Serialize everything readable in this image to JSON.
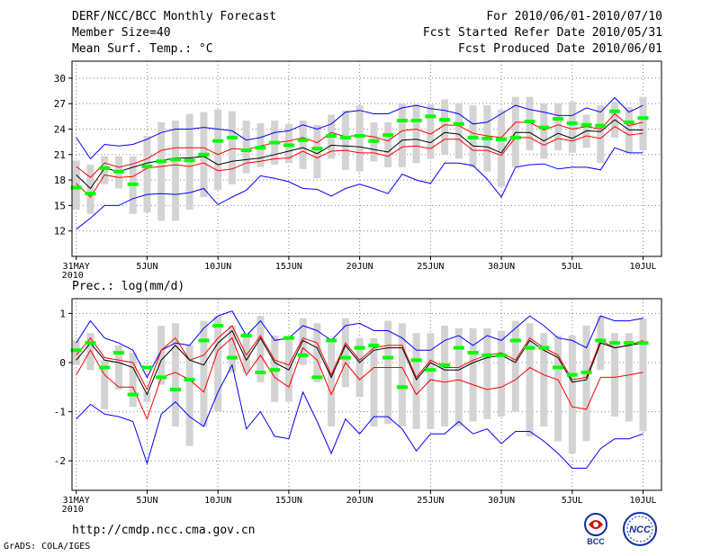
{
  "header": {
    "title": "DERF/NCC/BCC Monthly Forecast",
    "member_size": "Member Size=40",
    "variable": "Mean Surf. Temp.: °C",
    "period": "For 2010/06/01-2010/07/10",
    "started": "Fcst Started Refer Date 2010/05/31",
    "produced": "Fcst Produced Date 2010/06/01"
  },
  "footer": {
    "url": "http://cmdp.ncc.cma.gov.cn",
    "grads": "GrADS: COLA/IGES",
    "logo_left_text": "BCC",
    "logo_right_text": "NCC"
  },
  "colors": {
    "envelope": "#0000ff",
    "spread": "#ff0000",
    "mean": "#000000",
    "obs": "#00ff00",
    "box": "#d3d3d3",
    "grid": "#808080"
  },
  "chart_data": [
    {
      "type": "line",
      "title": "Mean Surf. Temp.: °C",
      "x_tick_labels": [
        "31MAY",
        "5JUN",
        "10JUN",
        "15JUN",
        "20JUN",
        "25JUN",
        "30JUN",
        "5JUL",
        "10JUL"
      ],
      "x_year_label": "2010",
      "y_ticks": [
        12,
        15,
        18,
        21,
        24,
        27,
        30
      ],
      "ylim": [
        9,
        32
      ],
      "series": [
        {
          "name": "max",
          "values": [
            23,
            20.5,
            22.2,
            22.0,
            22.2,
            22.8,
            23.6,
            24.0,
            24.0,
            24.2,
            24.0,
            23.8,
            22.7,
            23.0,
            23.6,
            23.8,
            24.5,
            24.0,
            24.6,
            26.0,
            26.2,
            25.8,
            25.8,
            26.5,
            26.8,
            26.4,
            26.2,
            25.8,
            24.6,
            24.8,
            25.8,
            26.8,
            26.3,
            26.0,
            25.6,
            25.6,
            26.5,
            26.0,
            27.7,
            26.0,
            26.8
          ]
        },
        {
          "name": "upper",
          "values": [
            19.6,
            18.3,
            20.0,
            19.5,
            19.9,
            20.5,
            21.5,
            21.8,
            21.8,
            21.8,
            21.0,
            21.7,
            21.6,
            22.0,
            22.4,
            22.6,
            23.0,
            22.4,
            23.6,
            23.1,
            23.3,
            23.1,
            22.6,
            23.8,
            24.0,
            23.4,
            24.5,
            24.4,
            23.5,
            23.2,
            23.0,
            24.8,
            24.8,
            23.9,
            24.5,
            24.0,
            24.3,
            24.0,
            25.8,
            24.4,
            24.8
          ]
        },
        {
          "name": "mean",
          "values": [
            18.6,
            17.0,
            19.4,
            19.0,
            19.5,
            20.0,
            20.3,
            20.6,
            20.6,
            20.8,
            19.8,
            20.2,
            20.4,
            20.6,
            21.0,
            21.4,
            21.8,
            21.1,
            22.1,
            22.0,
            21.9,
            21.6,
            21.3,
            22.7,
            22.8,
            22.4,
            23.6,
            23.4,
            22.0,
            21.9,
            21.2,
            23.6,
            23.6,
            22.6,
            23.5,
            22.9,
            23.8,
            23.7,
            25.1,
            23.9,
            23.9
          ]
        },
        {
          "name": "lower",
          "values": [
            17.6,
            16.0,
            18.6,
            18.3,
            18.4,
            19.4,
            19.6,
            19.8,
            19.6,
            20.0,
            19.1,
            19.3,
            20.0,
            20.2,
            20.5,
            20.6,
            21.4,
            20.6,
            21.4,
            21.5,
            21.2,
            21.2,
            20.8,
            21.9,
            22.0,
            21.7,
            22.8,
            22.8,
            21.5,
            21.5,
            20.9,
            23.0,
            23.0,
            22.1,
            22.9,
            22.6,
            23.2,
            22.9,
            24.3,
            23.3,
            23.5
          ]
        },
        {
          "name": "min",
          "values": [
            12.2,
            13.5,
            15.0,
            15.0,
            15.8,
            16.3,
            16.4,
            16.3,
            16.5,
            17.0,
            15.1,
            16.0,
            16.8,
            18.5,
            18.2,
            17.8,
            17.0,
            16.9,
            16.1,
            17.0,
            17.5,
            17.0,
            16.4,
            18.7,
            18.0,
            17.6,
            20.0,
            20.0,
            19.7,
            18.1,
            16.0,
            19.5,
            19.8,
            19.9,
            19.3,
            19.5,
            19.5,
            19.2,
            21.8,
            21.2,
            21.2
          ]
        },
        {
          "name": "observed",
          "values": [
            17.1,
            16.4,
            19.4,
            19.0,
            17.5,
            19.6,
            20.2,
            20.4,
            20.3,
            21.0,
            22.6,
            23.0,
            21.5,
            21.8,
            22.4,
            22.1,
            22.7,
            21.7,
            23.2,
            23.0,
            23.2,
            22.6,
            23.3,
            25.0,
            25.0,
            25.5,
            25.1,
            24.6,
            23.0,
            22.9,
            22.8,
            23.0,
            24.9,
            24.2,
            25.2,
            24.7,
            24.5,
            24.4,
            26.1,
            24.8,
            25.3
          ]
        },
        {
          "name": "box_high",
          "values": [
            20.3,
            19.8,
            20.8,
            20.8,
            20.8,
            23.2,
            24.8,
            25.0,
            25.8,
            26.0,
            26.3,
            26.1,
            25.0,
            24.7,
            25.0,
            24.6,
            25.0,
            24.5,
            25.7,
            26.2,
            26.8,
            24.8,
            24.8,
            27.0,
            26.9,
            26.9,
            27.5,
            27.0,
            26.8,
            26.8,
            26.3,
            27.8,
            27.8,
            27.0,
            27.0,
            27.2,
            25.7,
            26.8,
            27.2,
            26.6,
            27.8
          ]
        },
        {
          "name": "box_low",
          "values": [
            14.5,
            14.0,
            17.5,
            17.0,
            14.0,
            14.2,
            13.2,
            13.2,
            14.5,
            16.0,
            16.8,
            17.5,
            18.8,
            19.5,
            19.8,
            20.0,
            19.3,
            18.2,
            20.5,
            19.2,
            19.0,
            20.2,
            19.5,
            19.5,
            20.0,
            20.5,
            21.0,
            20.5,
            19.5,
            19.0,
            17.2,
            19.5,
            21.5,
            20.5,
            21.5,
            21.2,
            21.8,
            20.0,
            23.0,
            21.2,
            21.5
          ]
        }
      ]
    },
    {
      "type": "line",
      "title": "Prec.: log(mm/d)",
      "x_tick_labels": [
        "31MAY",
        "5JUN",
        "10JUN",
        "15JUN",
        "20JUN",
        "25JUN",
        "30JUN",
        "5JUL",
        "10JUL"
      ],
      "x_year_label": "2010",
      "y_ticks": [
        -2,
        -1,
        0,
        1
      ],
      "ylim": [
        -2.6,
        1.3
      ],
      "series": [
        {
          "name": "max",
          "values": [
            0.4,
            0.85,
            0.5,
            0.4,
            0.25,
            -0.3,
            0.25,
            0.4,
            0.35,
            0.7,
            0.95,
            1.05,
            0.55,
            0.85,
            0.45,
            0.5,
            0.75,
            0.65,
            0.45,
            0.75,
            0.8,
            0.65,
            0.65,
            0.5,
            0.25,
            0.25,
            0.45,
            0.55,
            0.35,
            0.55,
            0.45,
            0.7,
            0.95,
            0.75,
            0.5,
            0.45,
            0.3,
            0.95,
            0.85,
            0.85,
            0.9
          ]
        },
        {
          "name": "upper",
          "values": [
            0.15,
            0.5,
            0.1,
            0.05,
            0.0,
            -0.55,
            0.25,
            0.5,
            0.05,
            0.15,
            0.5,
            0.75,
            0.15,
            0.55,
            0.05,
            -0.05,
            0.5,
            0.4,
            -0.25,
            0.4,
            0.05,
            0.3,
            0.35,
            0.35,
            -0.3,
            0.05,
            -0.1,
            -0.1,
            0.05,
            0.15,
            0.2,
            0.05,
            0.5,
            0.3,
            0.15,
            -0.35,
            -0.3,
            0.45,
            0.3,
            0.35,
            0.45
          ]
        },
        {
          "name": "mean",
          "values": [
            0.05,
            0.4,
            0.05,
            0.0,
            -0.1,
            -0.65,
            0.05,
            0.35,
            0.05,
            -0.05,
            0.4,
            0.65,
            0.05,
            0.5,
            0.0,
            -0.15,
            0.45,
            0.3,
            -0.3,
            0.35,
            0.0,
            0.25,
            0.3,
            0.3,
            -0.35,
            0.0,
            -0.15,
            -0.15,
            0.0,
            0.1,
            0.15,
            0.0,
            0.45,
            0.25,
            0.1,
            -0.4,
            -0.35,
            0.4,
            0.3,
            0.35,
            0.4
          ]
        },
        {
          "name": "lower",
          "values": [
            -0.25,
            0.25,
            -0.25,
            -0.5,
            -0.5,
            -1.15,
            -0.3,
            -0.2,
            -0.35,
            -0.6,
            0.25,
            0.5,
            -0.25,
            0.15,
            -0.3,
            -0.5,
            0.3,
            0.05,
            -0.65,
            0.0,
            -0.35,
            -0.1,
            -0.1,
            -0.1,
            -0.65,
            -0.35,
            -0.4,
            -0.35,
            -0.45,
            -0.55,
            -0.5,
            -0.35,
            -0.1,
            -0.25,
            -0.35,
            -0.9,
            -0.95,
            -0.3,
            -0.3,
            -0.25,
            -0.2
          ]
        },
        {
          "name": "min",
          "values": [
            -1.15,
            -0.85,
            -1.05,
            -1.1,
            -1.2,
            -2.05,
            -1.05,
            -0.8,
            -1.1,
            -1.3,
            -0.6,
            -0.05,
            -1.35,
            -1.0,
            -1.5,
            -1.55,
            -0.6,
            -1.2,
            -1.85,
            -1.15,
            -1.45,
            -1.1,
            -1.1,
            -1.35,
            -1.8,
            -1.45,
            -1.45,
            -1.2,
            -1.45,
            -1.35,
            -1.65,
            -1.4,
            -1.4,
            -1.6,
            -1.85,
            -2.15,
            -2.15,
            -1.75,
            -1.55,
            -1.55,
            -1.45
          ]
        },
        {
          "name": "observed",
          "values": [
            0.25,
            0.4,
            -0.1,
            0.2,
            -0.65,
            -0.1,
            -0.3,
            -0.55,
            -0.35,
            0.45,
            0.75,
            0.1,
            0.55,
            -0.2,
            -0.15,
            0.5,
            0.15,
            -0.3,
            0.45,
            0.1,
            0.3,
            0.35,
            0.1,
            -0.5,
            0.05,
            -0.15,
            -0.05,
            0.3,
            0.2,
            0.15,
            0.15,
            0.45,
            0.3,
            0.3,
            -0.1,
            -0.25,
            -0.2,
            0.45,
            0.4,
            0.4,
            0.4
          ]
        },
        {
          "name": "box_high",
          "values": [
            0.45,
            0.6,
            0.05,
            0.35,
            0.2,
            -0.6,
            0.75,
            0.8,
            0.35,
            0.85,
            0.95,
            0.75,
            0.6,
            0.95,
            0.55,
            0.5,
            0.9,
            0.8,
            0.5,
            0.9,
            0.5,
            0.5,
            0.85,
            0.8,
            0.6,
            0.6,
            0.75,
            0.7,
            0.7,
            0.7,
            0.65,
            0.85,
            0.8,
            0.6,
            0.55,
            0.55,
            0.75,
            0.95,
            0.6,
            0.6,
            0.9
          ]
        },
        {
          "name": "box_low",
          "values": [
            -0.05,
            -0.15,
            -0.95,
            -0.55,
            -0.9,
            -0.8,
            -0.45,
            -1.3,
            -1.7,
            -1.3,
            -1.0,
            -0.2,
            -0.2,
            -0.4,
            -0.8,
            -0.8,
            -0.05,
            -0.4,
            -1.3,
            -0.5,
            -0.7,
            -1.3,
            -1.25,
            -1.3,
            -1.35,
            -1.35,
            -1.3,
            -1.3,
            -1.2,
            -1.15,
            -1.1,
            -1.0,
            -1.5,
            -1.3,
            -1.6,
            -1.85,
            -1.6,
            -0.15,
            -1.1,
            -1.2,
            -1.4
          ]
        }
      ]
    }
  ]
}
